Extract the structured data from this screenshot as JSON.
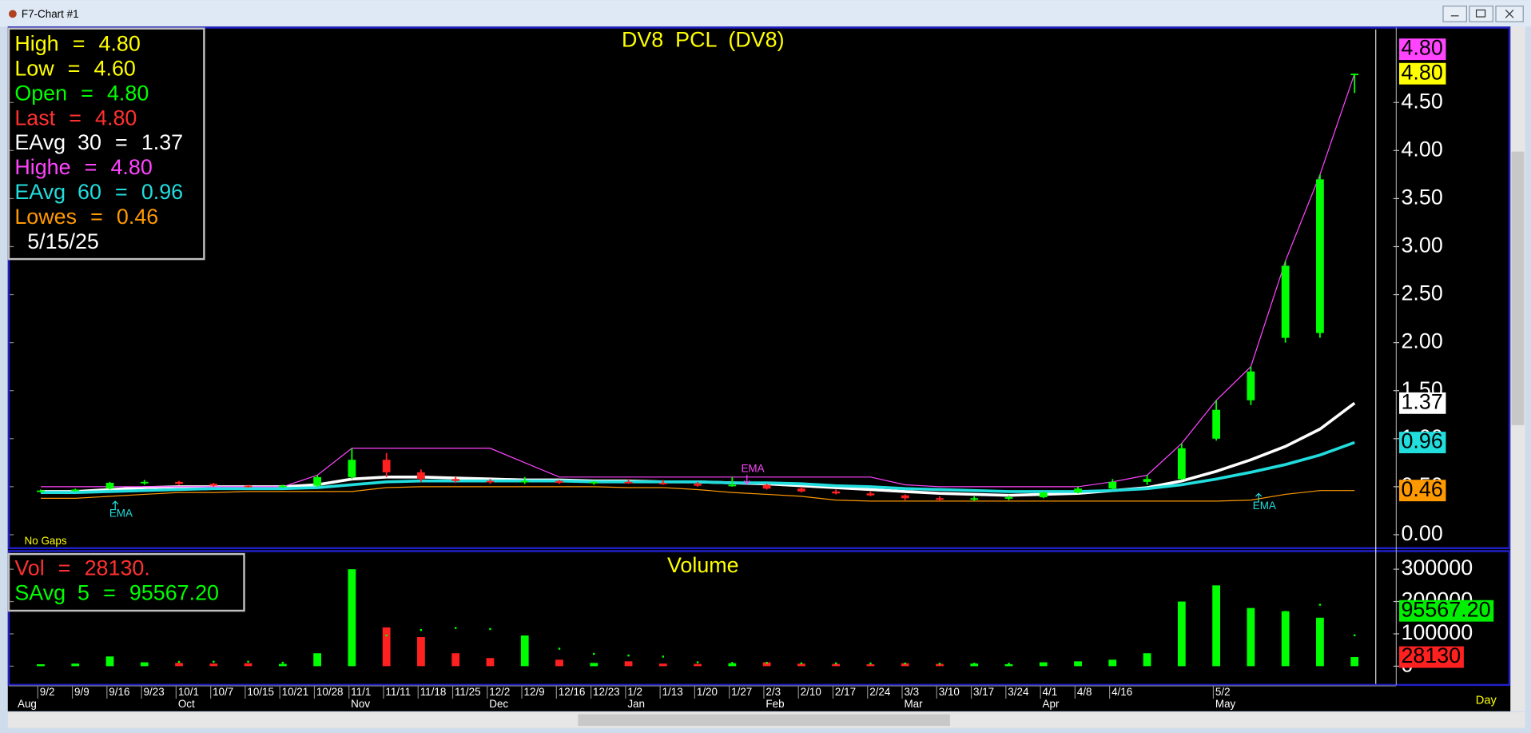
{
  "window_title": "F7-Chart #1",
  "chart_data": [
    {
      "type": "candlestick",
      "title": "DV8  PCL  (DV8)",
      "categories": [
        "9/2",
        "9/9",
        "9/16",
        "9/23",
        "10/1",
        "10/7",
        "10/15",
        "10/21",
        "10/28",
        "11/1",
        "11/11",
        "11/18",
        "11/25",
        "12/2",
        "12/9",
        "12/16",
        "12/23",
        "1/2",
        "1/13",
        "1/20",
        "1/27",
        "2/3",
        "2/10",
        "2/17",
        "2/24",
        "3/3",
        "3/10",
        "3/17",
        "3/24",
        "4/1",
        "4/8",
        "4/16",
        null,
        null,
        "5/2",
        null,
        null,
        null,
        null
      ],
      "month_labels": [
        "Aug",
        null,
        null,
        null,
        "Oct",
        null,
        null,
        null,
        null,
        "Nov",
        null,
        null,
        null,
        "Dec",
        null,
        null,
        null,
        "Jan",
        null,
        null,
        null,
        "Feb",
        null,
        null,
        null,
        "Mar",
        null,
        null,
        null,
        "Apr",
        null,
        null,
        null,
        null,
        "May",
        null,
        null,
        null,
        null
      ],
      "open": [
        0.45,
        0.46,
        0.48,
        0.54,
        0.55,
        0.53,
        0.51,
        0.5,
        0.51,
        0.6,
        0.78,
        0.65,
        0.58,
        0.56,
        0.55,
        0.56,
        0.54,
        0.55,
        0.54,
        0.53,
        0.51,
        0.52,
        0.48,
        0.45,
        0.43,
        0.41,
        0.38,
        0.37,
        0.38,
        0.39,
        0.44,
        0.48,
        0.55,
        0.58,
        1.0,
        1.4,
        2.05,
        2.1,
        4.8
      ],
      "high": [
        0.47,
        0.48,
        0.55,
        0.57,
        0.56,
        0.54,
        0.52,
        0.52,
        0.62,
        0.9,
        0.85,
        0.68,
        0.6,
        0.58,
        0.6,
        0.57,
        0.56,
        0.58,
        0.57,
        0.55,
        0.6,
        0.53,
        0.5,
        0.47,
        0.45,
        0.42,
        0.4,
        0.4,
        0.41,
        0.45,
        0.5,
        0.58,
        0.62,
        0.95,
        1.4,
        1.75,
        2.85,
        3.75,
        4.8
      ],
      "low": [
        0.44,
        0.45,
        0.47,
        0.52,
        0.52,
        0.5,
        0.49,
        0.49,
        0.5,
        0.58,
        0.6,
        0.55,
        0.54,
        0.53,
        0.53,
        0.53,
        0.52,
        0.53,
        0.52,
        0.5,
        0.5,
        0.47,
        0.44,
        0.42,
        0.4,
        0.36,
        0.35,
        0.35,
        0.36,
        0.38,
        0.43,
        0.47,
        0.52,
        0.57,
        0.98,
        1.35,
        2.0,
        2.05,
        4.6
      ],
      "close": [
        0.46,
        0.47,
        0.54,
        0.55,
        0.53,
        0.51,
        0.5,
        0.51,
        0.6,
        0.78,
        0.65,
        0.58,
        0.56,
        0.55,
        0.56,
        0.54,
        0.55,
        0.54,
        0.53,
        0.51,
        0.52,
        0.48,
        0.45,
        0.43,
        0.41,
        0.38,
        0.37,
        0.38,
        0.39,
        0.44,
        0.48,
        0.55,
        0.58,
        0.9,
        1.3,
        1.7,
        2.8,
        3.7,
        4.8
      ],
      "up_color": "#00ff00",
      "down_color": "#ff2020",
      "series": [
        {
          "name": "EAvg 30",
          "color": "#ffffff",
          "width": 3,
          "values": [
            0.45,
            0.45,
            0.47,
            0.49,
            0.5,
            0.5,
            0.5,
            0.5,
            0.52,
            0.58,
            0.6,
            0.6,
            0.59,
            0.58,
            0.57,
            0.57,
            0.56,
            0.56,
            0.55,
            0.55,
            0.54,
            0.53,
            0.51,
            0.49,
            0.47,
            0.45,
            0.43,
            0.42,
            0.41,
            0.42,
            0.43,
            0.46,
            0.49,
            0.56,
            0.66,
            0.78,
            0.92,
            1.1,
            1.37
          ]
        },
        {
          "name": "EAvg 60",
          "color": "#22dddd",
          "width": 3,
          "values": [
            0.44,
            0.44,
            0.45,
            0.46,
            0.47,
            0.48,
            0.48,
            0.48,
            0.49,
            0.52,
            0.55,
            0.56,
            0.56,
            0.56,
            0.56,
            0.56,
            0.55,
            0.55,
            0.55,
            0.55,
            0.54,
            0.54,
            0.53,
            0.51,
            0.5,
            0.48,
            0.47,
            0.46,
            0.45,
            0.45,
            0.45,
            0.46,
            0.48,
            0.52,
            0.58,
            0.65,
            0.73,
            0.83,
            0.96
          ]
        },
        {
          "name": "Highest",
          "color": "#ff44ff",
          "width": 1,
          "values": [
            0.5,
            0.5,
            0.5,
            0.5,
            0.5,
            0.5,
            0.5,
            0.5,
            0.62,
            0.9,
            0.9,
            0.9,
            0.9,
            0.9,
            0.75,
            0.6,
            0.6,
            0.6,
            0.6,
            0.6,
            0.6,
            0.6,
            0.6,
            0.6,
            0.6,
            0.52,
            0.5,
            0.5,
            0.5,
            0.5,
            0.5,
            0.55,
            0.62,
            0.95,
            1.4,
            1.75,
            2.85,
            3.75,
            4.8
          ]
        },
        {
          "name": "Lowest",
          "color": "#ff9900",
          "width": 1,
          "values": [
            0.38,
            0.38,
            0.4,
            0.42,
            0.44,
            0.44,
            0.45,
            0.45,
            0.45,
            0.45,
            0.49,
            0.5,
            0.5,
            0.5,
            0.5,
            0.5,
            0.5,
            0.49,
            0.49,
            0.47,
            0.44,
            0.42,
            0.4,
            0.36,
            0.35,
            0.35,
            0.35,
            0.35,
            0.35,
            0.35,
            0.35,
            0.35,
            0.35,
            0.35,
            0.35,
            0.36,
            0.42,
            0.46,
            0.46
          ]
        }
      ],
      "ylim": [
        -0.13,
        5.26
      ],
      "yticks": [
        {
          "value": 0,
          "label": "0.00"
        },
        {
          "value": 0.5,
          "label": "0.50"
        },
        {
          "value": 1,
          "label": "1.00"
        },
        {
          "value": 1.5,
          "label": "1.50"
        },
        {
          "value": 2,
          "label": "2.00"
        },
        {
          "value": 2.5,
          "label": "2.50"
        },
        {
          "value": 3,
          "label": "3.00"
        },
        {
          "value": 3.5,
          "label": "3.50"
        },
        {
          "value": 4,
          "label": "4.00"
        },
        {
          "value": 4.5,
          "label": "4.50"
        }
      ],
      "separator": "=",
      "readouts": [
        {
          "label": "High",
          "value": 4.8,
          "value_label": "4.80",
          "color": "#ffff00"
        },
        {
          "label": "Low",
          "value": 4.6,
          "value_label": "4.60",
          "color": "#ffff00"
        },
        {
          "label": "Open",
          "value": 4.8,
          "value_label": "4.80",
          "color": "#00ff00"
        },
        {
          "label": "Last",
          "value": 4.8,
          "value_label": "4.80",
          "color": "#ff3030",
          "badge": "#ffff00"
        },
        {
          "label": "EAvg  30",
          "value": 1.37,
          "value_label": "1.37",
          "color": "#ffffff",
          "badge": "#ffffff"
        },
        {
          "label": "Highe",
          "value": 4.8,
          "value_label": "4.80",
          "color": "#ff44ff",
          "badge": "#ff44ff"
        },
        {
          "label": "EAvg  60",
          "value": 0.96,
          "value_label": "0.96",
          "color": "#22dddd",
          "badge": "#22dddd"
        },
        {
          "label": "Lowes",
          "value": 0.46,
          "value_label": "0.46",
          "color": "#ff9900",
          "badge": "#ff9900"
        }
      ],
      "date": "5/15/25",
      "annotations": [
        {
          "text": "EMA",
          "color": "#22dddd"
        },
        {
          "text": "EMA",
          "color": "#ff44ff"
        },
        {
          "text": "EMA",
          "color": "#22dddd"
        },
        {
          "text": "No Gaps",
          "color": "#ffff00"
        }
      ]
    },
    {
      "type": "bar",
      "title": "Volume",
      "values": [
        6000,
        8000,
        30000,
        12000,
        10000,
        8000,
        9000,
        7000,
        40000,
        300000,
        120000,
        90000,
        40000,
        25000,
        95000,
        20000,
        10000,
        15000,
        8000,
        7000,
        9000,
        12000,
        8000,
        7000,
        6000,
        9000,
        7000,
        8000,
        6000,
        12000,
        15000,
        20000,
        40000,
        200000,
        250000,
        180000,
        170000,
        150000,
        28130
      ],
      "series": [
        {
          "name": "SAvg  5",
          "color": "#00ff00",
          "values": [
            null,
            null,
            null,
            null,
            13200,
            13600,
            13800,
            10600,
            14800,
            72800,
            95200,
            111800,
            118000,
            115000,
            74000,
            54000,
            38000,
            33000,
            29600,
            12000,
            9800,
            10200,
            8800,
            8600,
            8400,
            8400,
            7400,
            7600,
            7400,
            8400,
            9600,
            12200,
            20200,
            57400,
            105000,
            138000,
            168000,
            190000,
            95567.2
          ]
        }
      ],
      "ylim": [
        -55000,
        350000
      ],
      "yticks": [
        0,
        100000,
        200000,
        300000
      ],
      "separator": "=",
      "readouts": [
        {
          "label": "Vol",
          "value": 28130,
          "value_label": "28130.",
          "badge_label": "28130",
          "color": "#ff3030",
          "badge": "#ff2020"
        },
        {
          "label": "SAvg  5",
          "value": 95567.2,
          "value_label": "95567.20",
          "color": "#00ff00",
          "badge": "#00ee00"
        }
      ]
    }
  ],
  "period": "Day"
}
